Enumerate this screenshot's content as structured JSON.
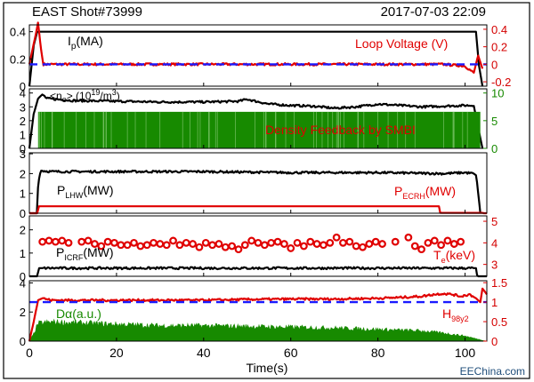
{
  "header": {
    "shot": "EAST Shot#73999",
    "datetime": "2017-07-03 22:09"
  },
  "footer": {
    "xlabel": "Time(s)",
    "watermark": "EEChina.com"
  },
  "colors": {
    "black": "#000000",
    "red": "#e00000",
    "green": "#178a00",
    "blue": "#1a1aff"
  },
  "chart_data": [
    {
      "type": "line",
      "panel": 1,
      "labels": {
        "ip_main": "I",
        "ip_sub": "p",
        "ip_unit": "(MA)",
        "loop_voltage": "Loop Voltage (V)"
      },
      "xlim": [
        0,
        105
      ],
      "ylim_left": [
        0,
        0.45
      ],
      "yticks_left": [
        "0",
        "0.2",
        "0.4"
      ],
      "ylim_right": [
        -0.25,
        0.45
      ],
      "yticks_right": [
        "-0.2",
        "0",
        "0.2",
        "0.4"
      ],
      "series": [
        {
          "label_key": "ip",
          "axis": "left",
          "color": "black",
          "style": "solid",
          "x": [
            0,
            1.0,
            1.8,
            2.2,
            5,
            20,
            40,
            60,
            80,
            100,
            102.5,
            103.2,
            104
          ],
          "y": [
            0,
            0.3,
            0.4,
            0.4,
            0.4,
            0.4,
            0.4,
            0.4,
            0.4,
            0.4,
            0.4,
            0.15,
            0
          ]
        },
        {
          "label_key": "loop_voltage",
          "axis": "right",
          "color": "red",
          "style": "noisy",
          "x": [
            0,
            1.5,
            2.0,
            2.6,
            3.2,
            5,
            20,
            40,
            60,
            80,
            95,
            100,
            102,
            103,
            104
          ],
          "y": [
            0,
            0.35,
            0.48,
            0.2,
            0.0,
            0.0,
            0.0,
            0.0,
            0.0,
            0.0,
            0.0,
            -0.02,
            -0.1,
            0.1,
            -0.05
          ]
        },
        {
          "label_key": "reference",
          "axis": "right",
          "color": "blue",
          "style": "dashed",
          "x": [
            0,
            105
          ],
          "y": [
            0.0,
            0.0
          ]
        }
      ]
    },
    {
      "type": "line",
      "panel": 2,
      "labels": {
        "ne_main": "<n",
        "ne_sub": "e",
        "ne_unit_pre": "> (10",
        "ne_exp": "19",
        "ne_unit_post": "/m",
        "ne_exp2": "3",
        "ne_close": ")",
        "feedback": "Density Feedback by SMBI"
      },
      "xlim": [
        0,
        105
      ],
      "ylim_left": [
        0,
        4.3
      ],
      "yticks_left": [
        "0",
        "1",
        "2",
        "3",
        "4"
      ],
      "ylim_right": [
        0,
        10.75
      ],
      "yticks_right": [
        "0",
        "5",
        "10"
      ],
      "series": [
        {
          "label_key": "ne",
          "axis": "left",
          "color": "black",
          "style": "noisy",
          "x": [
            0,
            1,
            2,
            3,
            4,
            10,
            20,
            30,
            40,
            48,
            50,
            52,
            55,
            60,
            65,
            70,
            75,
            80,
            85,
            90,
            95,
            100,
            102,
            103,
            104
          ],
          "y": [
            0,
            2.5,
            3.6,
            3.9,
            3.6,
            3.45,
            3.4,
            3.35,
            3.35,
            3.4,
            3.55,
            3.4,
            3.2,
            3.1,
            3.05,
            2.9,
            3.0,
            3.2,
            3.1,
            3.0,
            3.05,
            3.1,
            3.1,
            1.5,
            0
          ]
        },
        {
          "label_key": "feedback",
          "axis": "right",
          "color": "green",
          "style": "band",
          "x": [
            2,
            103.5
          ],
          "y": [
            0,
            6.6
          ]
        }
      ]
    },
    {
      "type": "line",
      "panel": 3,
      "labels": {
        "plhw_main": "P",
        "plhw_sub": "LHW",
        "plhw_unit": "(MW)",
        "pecrh_main": "P",
        "pecrh_sub": "ECRH",
        "pecrh_unit": "(MW)"
      },
      "xlim": [
        0,
        105
      ],
      "ylim_left": [
        0,
        3.05
      ],
      "yticks_left": [
        "0",
        "1",
        "2",
        "3"
      ],
      "series": [
        {
          "label_key": "plhw",
          "axis": "left",
          "color": "black",
          "style": "noisy",
          "x": [
            0,
            1.8,
            2.0,
            2.6,
            5,
            20,
            40,
            60,
            80,
            95,
            100,
            102,
            102.6,
            103.5
          ],
          "y": [
            0,
            0,
            1.5,
            2.15,
            2.1,
            2.1,
            2.1,
            2.05,
            2.05,
            2.0,
            2.05,
            2.0,
            1.9,
            0
          ]
        },
        {
          "label_key": "pecrh",
          "axis": "left",
          "color": "red",
          "style": "solid",
          "x": [
            0,
            1.8,
            2.2,
            94,
            94.3,
            104,
            104.3,
            105
          ],
          "y": [
            0,
            0,
            0.35,
            0.35,
            0.02,
            0.02,
            0,
            0
          ]
        }
      ]
    },
    {
      "type": "scatter",
      "panel": 4,
      "labels": {
        "picrf_main": "P",
        "picrf_sub": "ICRF",
        "picrf_unit": "(MW)",
        "te_main": "T",
        "te_sub": "e",
        "te_unit": "(keV)"
      },
      "xlim": [
        0,
        105
      ],
      "ylim_left": [
        0,
        2.6
      ],
      "yticks_left": [
        "0",
        "1",
        "2"
      ],
      "ylim_right": [
        2.45,
        5.25
      ],
      "yticks_right": [
        "3",
        "4",
        "5"
      ],
      "series": [
        {
          "label_key": "picrf",
          "axis": "left",
          "color": "black",
          "style": "noisy",
          "x": [
            0,
            1.8,
            2.2,
            10,
            20,
            30,
            40,
            50,
            60,
            70,
            80,
            90,
            100,
            102.5,
            102.8,
            105
          ],
          "y": [
            0,
            0,
            0.35,
            0.35,
            0.35,
            0.35,
            0.35,
            0.35,
            0.35,
            0.35,
            0.35,
            0.35,
            0.35,
            0.35,
            0,
            0
          ]
        },
        {
          "label_key": "te",
          "axis": "right",
          "color": "red",
          "style": "markers",
          "x": [
            3,
            4.5,
            6,
            7.5,
            9,
            12,
            13.5,
            15,
            16.5,
            18,
            19.5,
            21,
            22.5,
            24,
            25.5,
            27,
            28.5,
            30,
            31.5,
            33,
            34.5,
            36,
            37.5,
            39,
            40.5,
            42,
            43.5,
            45,
            46.5,
            48,
            49.5,
            51,
            52.5,
            54,
            55.5,
            57,
            58.5,
            60,
            61.5,
            63,
            64.5,
            66,
            67.5,
            69,
            70.5,
            72,
            73.5,
            75,
            76.5,
            78,
            79.5,
            81,
            84,
            87,
            88.5,
            90,
            91.5,
            93,
            94.5,
            96,
            97.5,
            99
          ],
          "y": [
            4.05,
            4.1,
            4.05,
            4.1,
            4.0,
            4.05,
            4.1,
            3.95,
            3.85,
            4.05,
            4.0,
            3.9,
            3.9,
            4.0,
            3.85,
            3.9,
            4.0,
            3.95,
            3.9,
            4.1,
            3.9,
            4.0,
            3.95,
            3.8,
            4.0,
            3.9,
            3.95,
            3.8,
            3.85,
            3.7,
            3.9,
            4.1,
            4.0,
            3.9,
            4.0,
            4.05,
            3.95,
            3.75,
            4.0,
            3.85,
            4.05,
            3.95,
            3.9,
            4.0,
            4.25,
            4.0,
            4.05,
            3.85,
            3.8,
            3.95,
            4.05,
            3.95,
            4.05,
            4.25,
            3.85,
            3.7,
            4.0,
            4.1,
            3.9,
            4.1,
            3.95,
            4.05
          ]
        }
      ]
    },
    {
      "type": "area",
      "panel": 5,
      "labels": {
        "dalpha": "Dα(a.u.)",
        "h98_main": "H",
        "h98_sub": "98y2"
      },
      "xlim": [
        0,
        105
      ],
      "ylim_left": [
        0,
        4.15
      ],
      "yticks_left": [
        "0",
        "2",
        "4"
      ],
      "ylim_right": [
        0,
        1.55
      ],
      "yticks_right": [
        "0",
        "0.5",
        "1",
        "1.5"
      ],
      "series": [
        {
          "label_key": "dalpha",
          "axis": "left",
          "color": "green",
          "style": "filled",
          "x": [
            0,
            1,
            2,
            5,
            10,
            20,
            30,
            40,
            50,
            60,
            70,
            80,
            90,
            95,
            100,
            102,
            103.5,
            104,
            105
          ],
          "y": [
            0,
            0.5,
            1.2,
            1.3,
            1.25,
            1.15,
            1.05,
            1.05,
            1.0,
            0.95,
            0.9,
            0.8,
            0.7,
            0.55,
            0.35,
            0.2,
            0.1,
            0.05,
            0
          ]
        },
        {
          "label_key": "h98",
          "axis": "right",
          "color": "red",
          "style": "noisy",
          "x": [
            0,
            1,
            2,
            3,
            5,
            10,
            20,
            30,
            40,
            50,
            60,
            70,
            80,
            85,
            90,
            93,
            95,
            97,
            99,
            101,
            102.5,
            103.5,
            104,
            105
          ],
          "y": [
            0,
            0.5,
            1.05,
            1.1,
            1.05,
            1.05,
            1.05,
            1.05,
            1.05,
            1.07,
            1.08,
            1.08,
            1.1,
            1.12,
            1.15,
            1.2,
            1.22,
            1.2,
            1.15,
            1.2,
            1.1,
            1.0,
            1.35,
            1.2
          ]
        },
        {
          "label_key": "reference",
          "axis": "right",
          "color": "blue",
          "style": "dashed",
          "x": [
            0,
            105
          ],
          "y": [
            1.0,
            1.0
          ]
        }
      ]
    }
  ],
  "x_axis": {
    "xlim": [
      0,
      105
    ],
    "ticks": [
      "0",
      "20",
      "40",
      "60",
      "80",
      "100"
    ],
    "tick_values": [
      0,
      20,
      40,
      60,
      80,
      100
    ]
  }
}
